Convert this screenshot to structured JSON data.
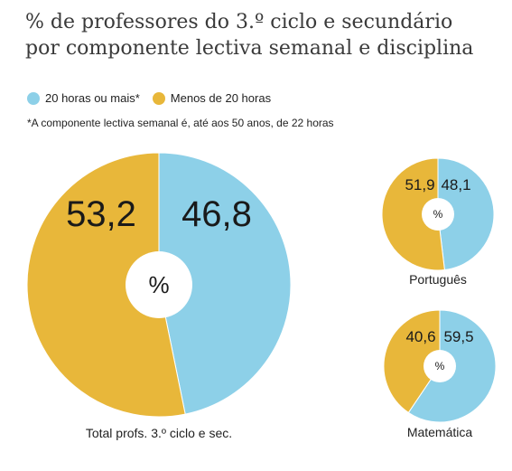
{
  "title": {
    "line1": "% de professores do 3.º ciclo e secundário",
    "line2": "por componente lectiva semanal e disciplina"
  },
  "legend": [
    {
      "label": "20 horas ou mais*",
      "color": "#8dd0e8"
    },
    {
      "label": "Menos de 20 horas",
      "color": "#e8b73a"
    }
  ],
  "footnote": "*A componente lectiva semanal é, até aos 50 anos, de 22 horas",
  "colors": {
    "blue": "#8dd0e8",
    "yellow": "#e8b73a",
    "center": "#ffffff"
  },
  "chart_data": [
    {
      "type": "pie",
      "title": "Total profs. 3.º ciclo e sec.",
      "center_label": "%",
      "series": [
        {
          "name": "20 horas ou mais*",
          "value": 46.8,
          "label": "46,8"
        },
        {
          "name": "Menos de 20 horas",
          "value": 53.2,
          "label": "53,2"
        }
      ]
    },
    {
      "type": "pie",
      "title": "Português",
      "center_label": "%",
      "series": [
        {
          "name": "20 horas ou mais*",
          "value": 48.1,
          "label": "48,1"
        },
        {
          "name": "Menos de 20 horas",
          "value": 51.9,
          "label": "51,9"
        }
      ]
    },
    {
      "type": "pie",
      "title": "Matemática",
      "center_label": "%",
      "series": [
        {
          "name": "20 horas ou mais*",
          "value": 59.5,
          "label": "59,5"
        },
        {
          "name": "Menos de 20 horas",
          "value": 40.6,
          "label": "40,6"
        }
      ]
    }
  ]
}
